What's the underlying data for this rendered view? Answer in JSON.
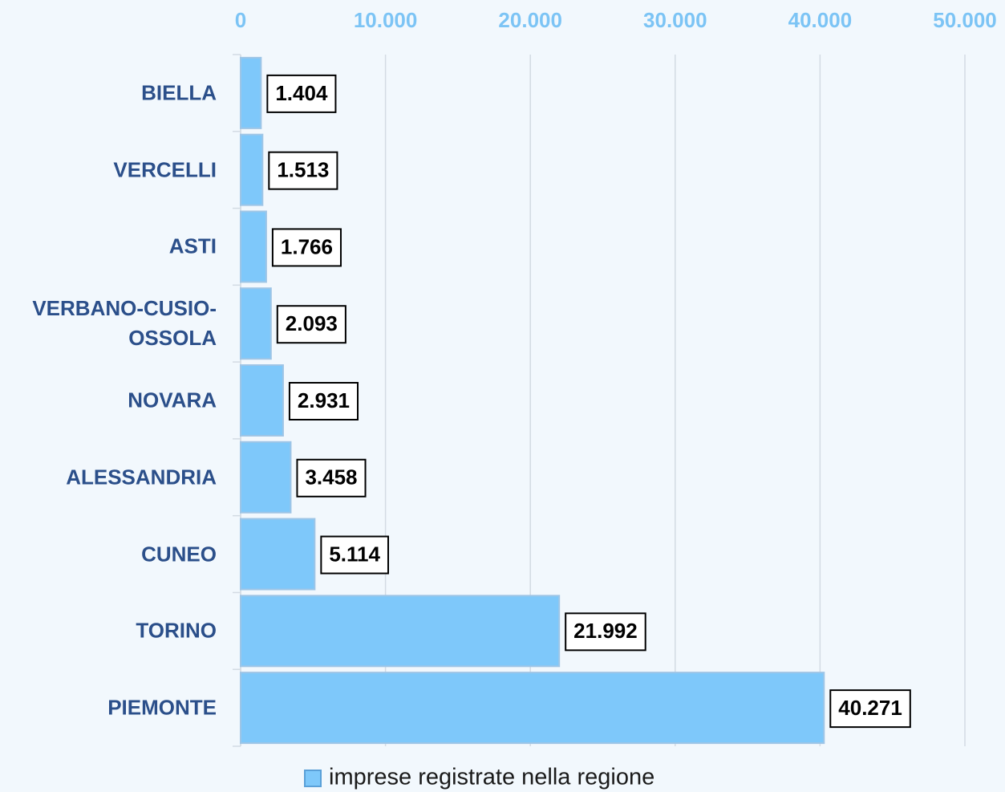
{
  "chart_data": {
    "type": "bar",
    "orientation": "horizontal",
    "categories": [
      "BIELLA",
      "VERCELLI",
      "ASTI",
      "VERBANO-CUSIO-OSSOLA",
      "NOVARA",
      "ALESSANDRIA",
      "CUNEO",
      "TORINO",
      "PIEMONTE"
    ],
    "series": [
      {
        "name": "imprese registrate nella regione",
        "color": "#7ec8fa",
        "values": [
          1404,
          1513,
          1766,
          2093,
          2931,
          3458,
          5114,
          21992,
          40271
        ],
        "value_labels": [
          "1.404",
          "1.513",
          "1.766",
          "2.093",
          "2.931",
          "3.458",
          "5.114",
          "21.992",
          "40.271"
        ]
      }
    ],
    "xlim": [
      0,
      50000
    ],
    "xticks": [
      0,
      {
        "value": 10000,
        "label": "10.000"
      },
      {
        "value": 20000,
        "label": "20.000"
      },
      {
        "value": 30000,
        "label": "30.000"
      },
      {
        "value": 40000,
        "label": "40.000"
      },
      {
        "value": 50000,
        "label": "50.000"
      }
    ],
    "grid": true,
    "legend": "bottom"
  }
}
